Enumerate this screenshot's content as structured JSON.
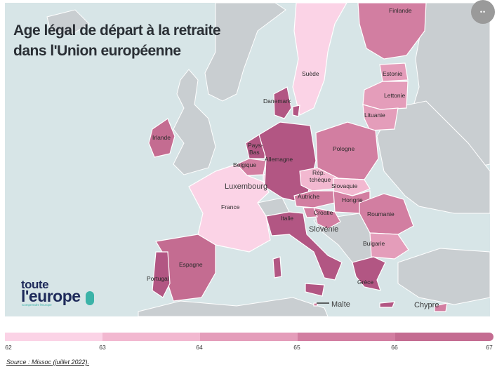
{
  "title": {
    "line1": "Age légal de départ à la retraite",
    "line2": "dans l'Union européenne"
  },
  "colors": {
    "water": "#d7e5e7",
    "non_eu_land": "#c9ced1",
    "age_62": "#fbd3e6",
    "age_63": "#f2b8d0",
    "age_64": "#e49dba",
    "age_65": "#d27ea1",
    "age_66": "#c46c91",
    "age_67": "#b25683"
  },
  "map": {
    "countries": [
      {
        "name": "Finlande",
        "age": 65
      },
      {
        "name": "Suède",
        "age": 62
      },
      {
        "name": "Estonie",
        "age": 64
      },
      {
        "name": "Lettonie",
        "age": 64
      },
      {
        "name": "Lituanie",
        "age": 64
      },
      {
        "name": "Danemark",
        "age": 67
      },
      {
        "name": "Irlande",
        "age": 66
      },
      {
        "name": "Pays-Bas",
        "age": 67
      },
      {
        "name": "Belgique",
        "age": 65
      },
      {
        "name": "Luxembourg",
        "age": 62
      },
      {
        "name": "Allemagne",
        "age": 67
      },
      {
        "name": "Pologne",
        "age": 65
      },
      {
        "name": "Rép. tchèque",
        "age": 63
      },
      {
        "name": "Slovaquie",
        "age": 63
      },
      {
        "name": "Autriche",
        "age": 65
      },
      {
        "name": "Hongrie",
        "age": 65
      },
      {
        "name": "Roumanie",
        "age": 65
      },
      {
        "name": "France",
        "age": 62
      },
      {
        "name": "Croatie",
        "age": 65
      },
      {
        "name": "Slovénie",
        "age": 65
      },
      {
        "name": "Italie",
        "age": 67
      },
      {
        "name": "Bulgarie",
        "age": 64
      },
      {
        "name": "Espagne",
        "age": 66
      },
      {
        "name": "Portugal",
        "age": 67
      },
      {
        "name": "Grèce",
        "age": 67
      },
      {
        "name": "Malte",
        "age": 65
      },
      {
        "name": "Chypre",
        "age": 65
      }
    ]
  },
  "legend": {
    "ticks": [
      "62",
      "63",
      "64",
      "65",
      "66",
      "67"
    ]
  },
  "logo": {
    "line1": "toute",
    "line2": "l'europe",
    "tagline": "Comprendre l'Europe"
  },
  "menu_button": "••",
  "source": "Source : Missoc (juillet 2022)."
}
